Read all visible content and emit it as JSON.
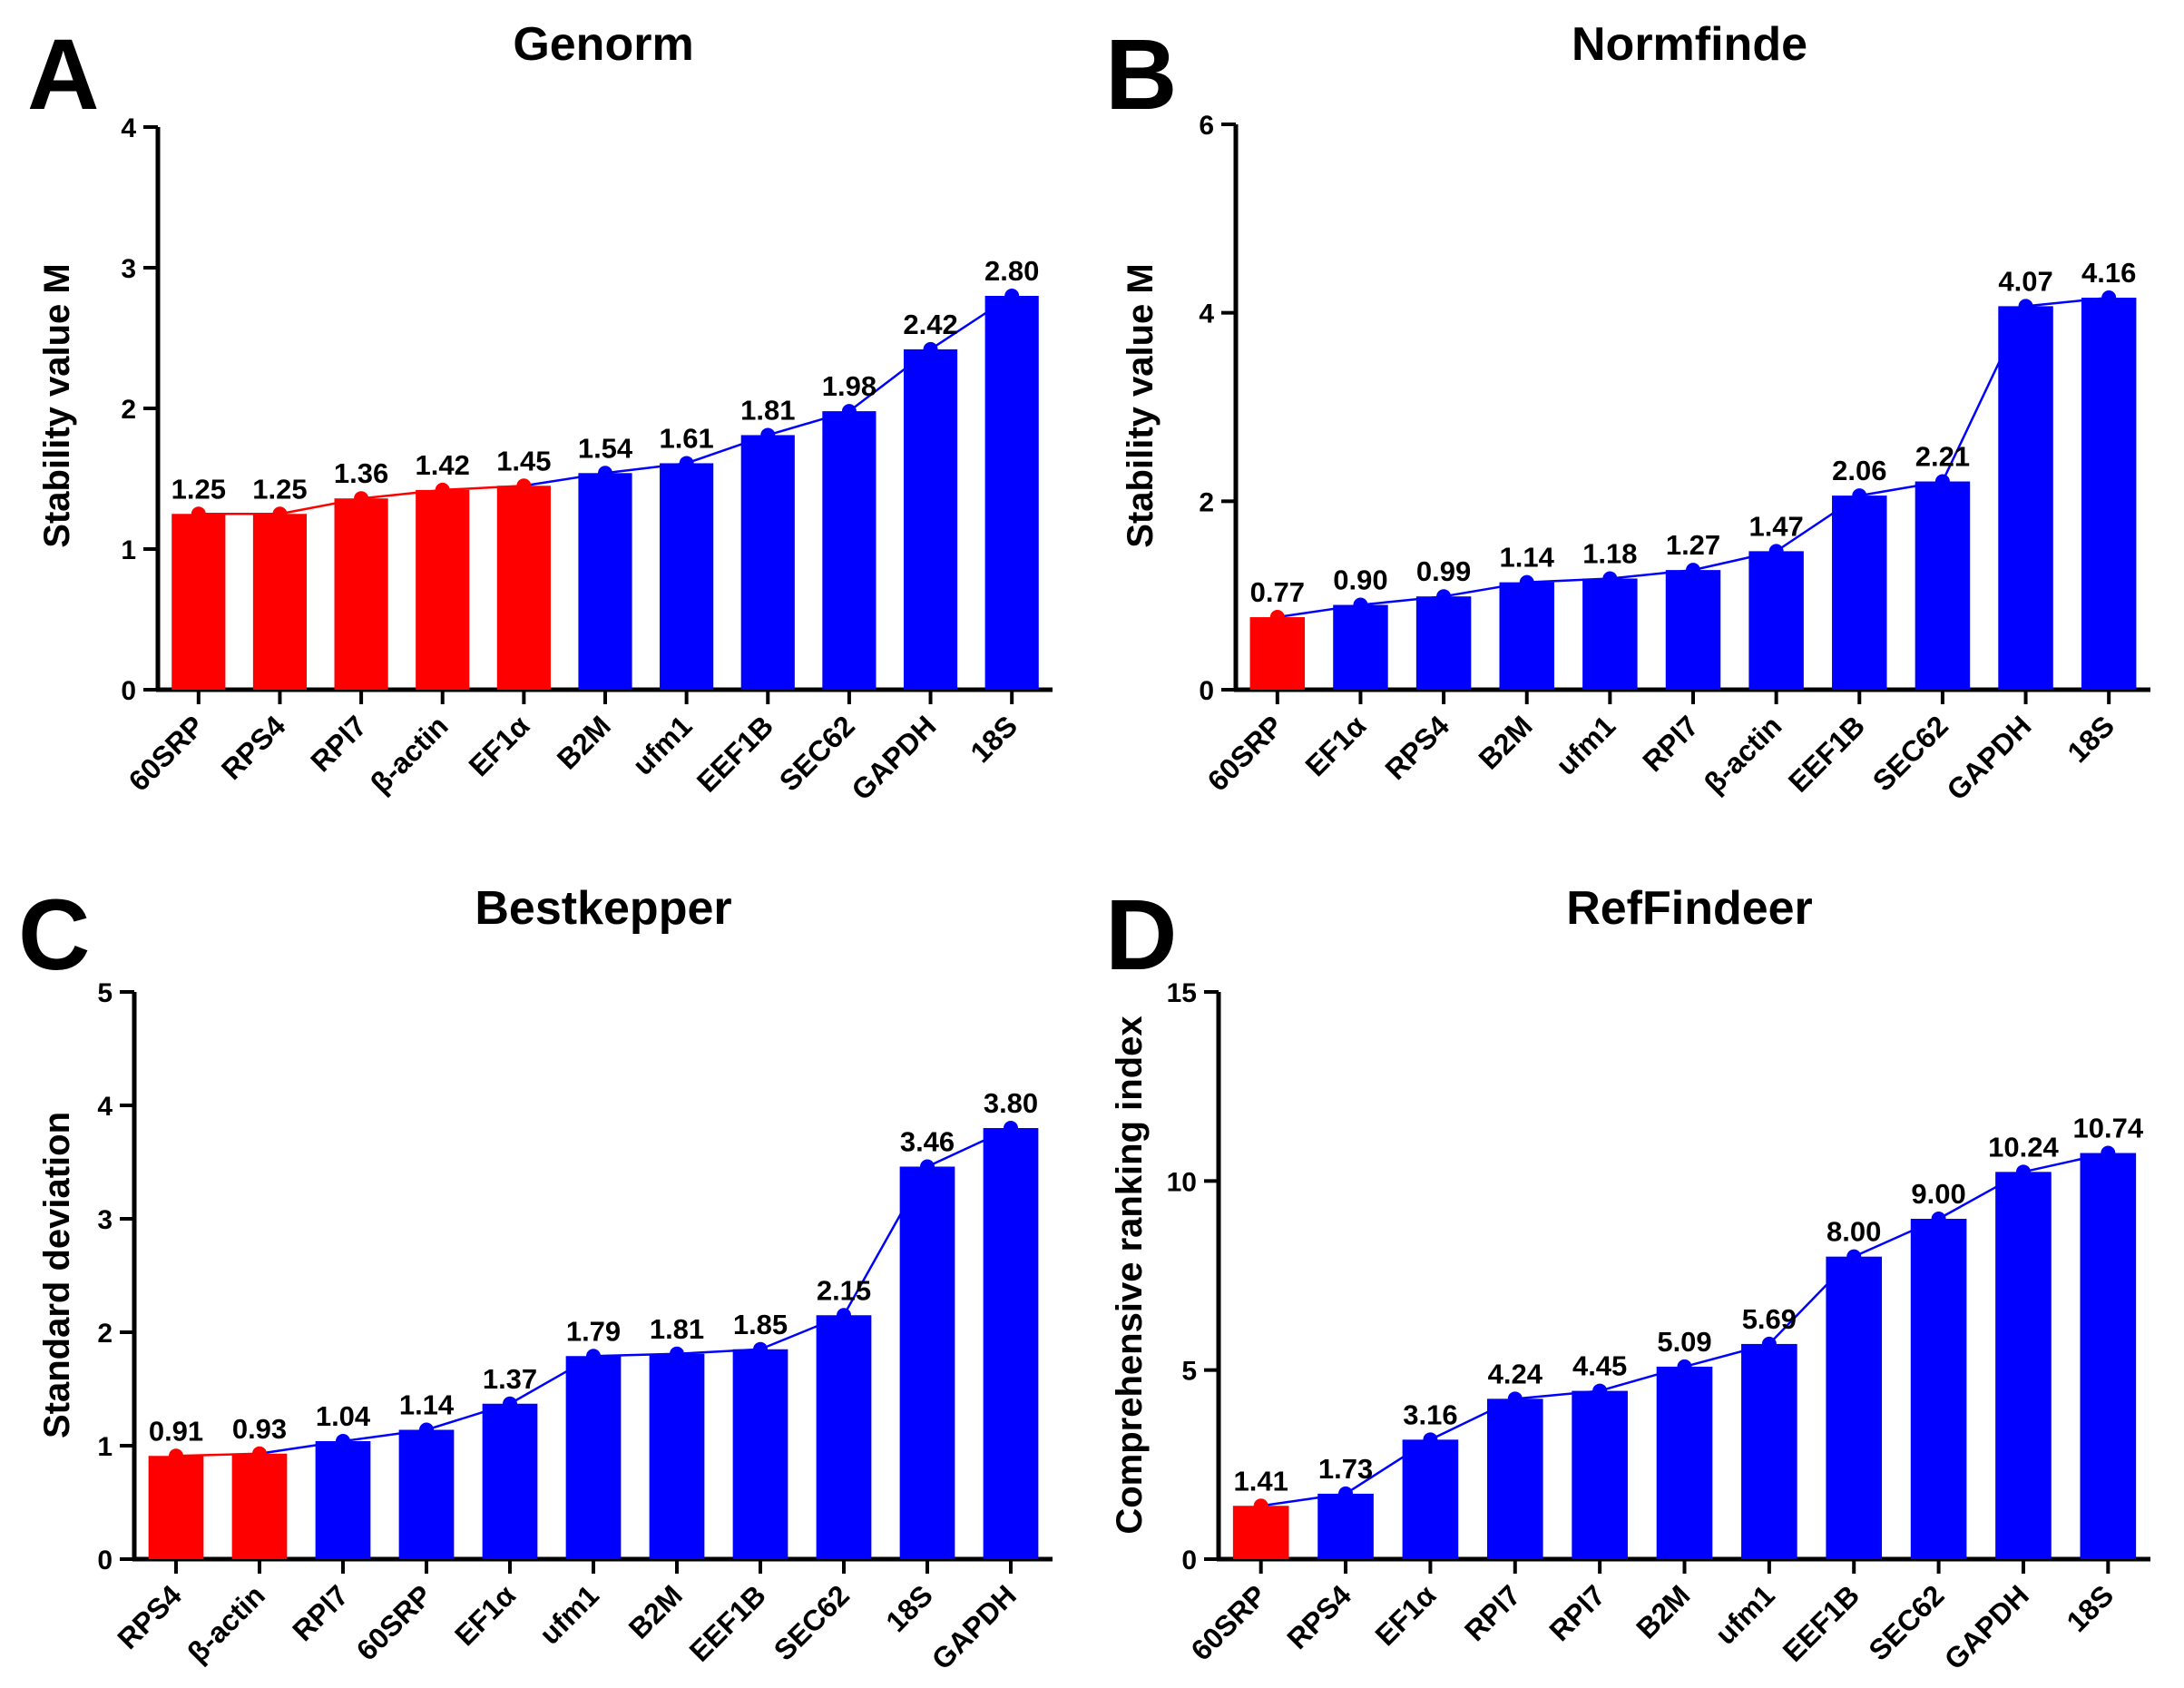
{
  "colors": {
    "highlight": "#ff0000",
    "normal": "#0000ff",
    "axis": "#000000"
  },
  "chart_data": [
    {
      "panel": "A",
      "type": "bar",
      "title": "Genorm",
      "xlabel": "",
      "ylabel": "Stability value M",
      "ylim": [
        0,
        4
      ],
      "yticks": [
        "0",
        "1",
        "2",
        "3",
        "4"
      ],
      "categories": [
        "60SRP",
        "RPS4",
        "RPl7",
        "β-actin",
        "EF1α",
        "B2M",
        "ufm1",
        "EEF1B",
        "SEC62",
        "GAPDH",
        "18S"
      ],
      "values": [
        1.25,
        1.25,
        1.36,
        1.42,
        1.45,
        1.54,
        1.61,
        1.81,
        1.98,
        2.42,
        2.8
      ],
      "labels": [
        "1.25",
        "1.25",
        "1.36",
        "1.42",
        "1.45",
        "1.54",
        "1.61",
        "1.81",
        "1.98",
        "2.42",
        "2.80"
      ],
      "highlight_count": 5,
      "series": [
        {
          "name": "Stability value M",
          "type": "bar+line"
        }
      ]
    },
    {
      "panel": "B",
      "type": "bar",
      "title": "Normfinde",
      "xlabel": "",
      "ylabel": "Stability value M",
      "ylim": [
        0,
        6
      ],
      "yticks": [
        "0",
        "2",
        "4",
        "6"
      ],
      "categories": [
        "60SRP",
        "EF1α",
        "RPS4",
        "B2M",
        "ufm1",
        "RPl7",
        "β-actin",
        "EEF1B",
        "SEC62",
        "GAPDH",
        "18S"
      ],
      "values": [
        0.77,
        0.9,
        0.99,
        1.14,
        1.18,
        1.27,
        1.47,
        2.06,
        2.21,
        4.07,
        4.16
      ],
      "labels": [
        "0.77",
        "0.90",
        "0.99",
        "1.14",
        "1.18",
        "1.27",
        "1.47",
        "2.06",
        "2.21",
        "4.07",
        "4.16"
      ],
      "highlight_count": 1,
      "series": [
        {
          "name": "Stability value M",
          "type": "bar+line"
        }
      ]
    },
    {
      "panel": "C",
      "type": "bar",
      "title": "Bestkepper",
      "xlabel": "",
      "ylabel": "Standard deviation",
      "ylim": [
        0,
        5
      ],
      "yticks": [
        "0",
        "1",
        "2",
        "3",
        "4",
        "5"
      ],
      "categories": [
        "RPS4",
        "β-actin",
        "RPl7",
        "60SRP",
        "EF1α",
        "ufm1",
        "B2M",
        "EEF1B",
        "SEC62",
        "18S",
        "GAPDH"
      ],
      "values": [
        0.91,
        0.93,
        1.04,
        1.14,
        1.37,
        1.79,
        1.81,
        1.85,
        2.15,
        3.46,
        3.8
      ],
      "labels": [
        "0.91",
        "0.93",
        "1.04",
        "1.14",
        "1.37",
        "1.79",
        "1.81",
        "1.85",
        "2.15",
        "3.46",
        "3.80"
      ],
      "highlight_count": 2,
      "series": [
        {
          "name": "Standard deviation",
          "type": "bar+line"
        }
      ]
    },
    {
      "panel": "D",
      "type": "bar",
      "title": "RefFindeer",
      "xlabel": "",
      "ylabel": "Comprehensive ranking index",
      "ylim": [
        0,
        15
      ],
      "yticks": [
        "0",
        "5",
        "10",
        "15"
      ],
      "categories": [
        "60SRP",
        "RPS4",
        "EF1α",
        "RPl7",
        "RPl7",
        "B2M",
        "ufm1",
        "EEF1B",
        "SEC62",
        "GAPDH",
        "18S"
      ],
      "values": [
        1.41,
        1.73,
        3.16,
        4.24,
        4.45,
        5.09,
        5.69,
        8.0,
        9.0,
        10.24,
        10.74
      ],
      "labels": [
        "1.41",
        "1.73",
        "3.16",
        "4.24",
        "4.45",
        "5.09",
        "5.69",
        "8.00",
        "9.00",
        "10.24",
        "10.74"
      ],
      "highlight_count": 1,
      "series": [
        {
          "name": "Comprehensive ranking index",
          "type": "bar+line"
        }
      ]
    }
  ]
}
